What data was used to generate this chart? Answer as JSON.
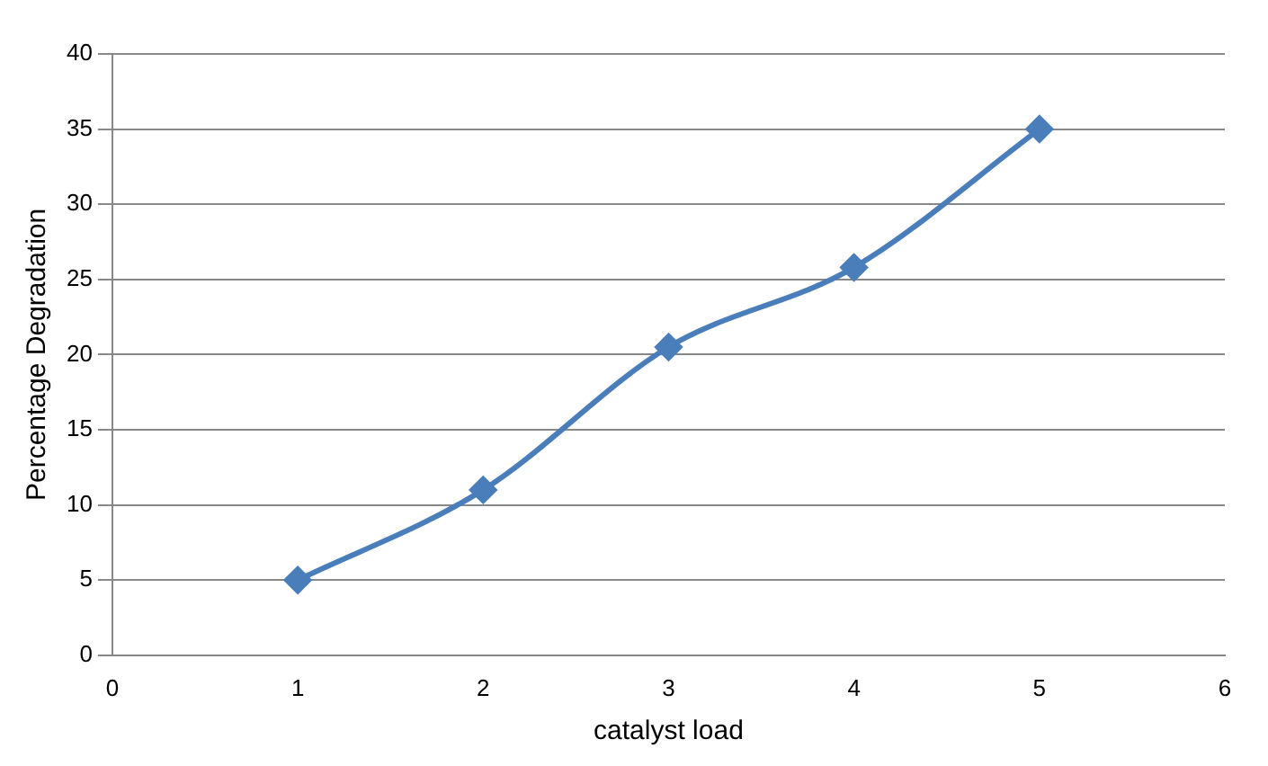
{
  "chart_data": {
    "type": "line",
    "xlabel": "catalyst load",
    "ylabel": "Percentage Degradation",
    "x": [
      1,
      2,
      3,
      4,
      5
    ],
    "series": [
      {
        "color": "#4a7ebb",
        "values": [
          5,
          11,
          20.5,
          25.8,
          35
        ]
      }
    ],
    "xlim": [
      0,
      6
    ],
    "xticks": [
      0,
      1,
      2,
      3,
      4,
      5,
      6
    ],
    "ylim": [
      0,
      40
    ],
    "yticks": [
      0,
      5,
      10,
      15,
      20,
      25,
      30,
      35,
      40
    ],
    "grid": "y",
    "legend": false,
    "marker": "diamond",
    "line_style": "solid"
  }
}
